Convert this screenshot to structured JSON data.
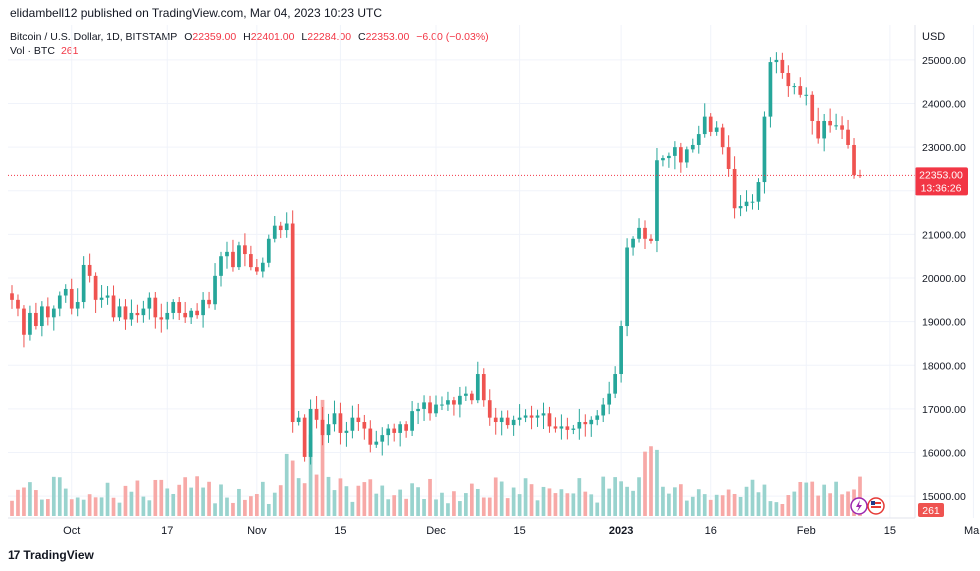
{
  "publisher": "elidambell12 published on TradingView.com, Mar 04, 2023 10:23 UTC",
  "legend": {
    "symbol": "Bitcoin / U.S. Dollar, 1D, BITSTAMP",
    "o_label": "O",
    "o_value": "22359.00",
    "h_label": "H",
    "h_value": "22401.00",
    "l_label": "L",
    "l_value": "22284.00",
    "c_label": "C",
    "c_value": "22353.00",
    "change": "−6.00 (−0.03%)",
    "vol_label": "Vol · BTC",
    "vol_value": "261"
  },
  "currency": "USD",
  "last_price": {
    "value": "22353.00",
    "countdown": "13:36:26"
  },
  "volume_badge": "261",
  "brand": "TradingView",
  "colors": {
    "up": "#26a69a",
    "down": "#ef5350",
    "up_vol": "#99d3ce",
    "down_vol": "#f7a9a7",
    "grid": "#f0f3fa",
    "price_label": "#f23645"
  },
  "chart_data": {
    "type": "candlestick",
    "title": "Bitcoin / U.S. Dollar, 1D, BITSTAMP",
    "ylim": [
      14500,
      25800
    ],
    "y_ticks": [
      15000,
      16000,
      17000,
      18000,
      19000,
      20000,
      21000,
      22000,
      23000,
      24000,
      25000
    ],
    "y_tick_labels": [
      "15000.00",
      "16000.00",
      "17000.00",
      "18000.00",
      "19000.00",
      "20000.00",
      "21000.00",
      "22000.00",
      "23000.00",
      "24000.00",
      "25000.00"
    ],
    "x_ticks": [
      {
        "label": "Oct",
        "index": 10,
        "bold": false
      },
      {
        "label": "17",
        "index": 26,
        "bold": false
      },
      {
        "label": "Nov",
        "index": 41,
        "bold": false
      },
      {
        "label": "15",
        "index": 55,
        "bold": false
      },
      {
        "label": "Dec",
        "index": 71,
        "bold": false
      },
      {
        "label": "15",
        "index": 85,
        "bold": false
      },
      {
        "label": "2023",
        "index": 102,
        "bold": true
      },
      {
        "label": "16",
        "index": 117,
        "bold": false
      },
      {
        "label": "Feb",
        "index": 133,
        "bold": false
      },
      {
        "label": "15",
        "index": 147,
        "bold": false
      },
      {
        "label": "Mar",
        "index": 161,
        "bold": false
      }
    ],
    "ohlc_closes": [
      19500,
      19300,
      18700,
      19200,
      18900,
      19350,
      19100,
      19300,
      19600,
      19750,
      19300,
      19450,
      20300,
      20050,
      19500,
      19550,
      19600,
      19100,
      19350,
      19050,
      19200,
      19150,
      19300,
      19550,
      19100,
      19050,
      19200,
      19450,
      19200,
      19100,
      19250,
      19150,
      19500,
      19400,
      20050,
      20500,
      20600,
      20250,
      20750,
      20550,
      20250,
      20150,
      20350,
      20900,
      21200,
      21100,
      21250,
      16700,
      16800,
      15900,
      17000,
      16750,
      16400,
      16650,
      16900,
      16450,
      16500,
      16800,
      16700,
      16550,
      16180,
      16250,
      16400,
      16550,
      16450,
      16650,
      16500,
      16950,
      17000,
      17150,
      16900,
      17100,
      17100,
      17200,
      17100,
      17300,
      17350,
      17200,
      17800,
      17200,
      16800,
      16700,
      16800,
      16630,
      16750,
      16800,
      16850,
      16800,
      16850,
      16900,
      16600,
      16550,
      16600,
      16520,
      16550,
      16700,
      16650,
      16750,
      16850,
      17100,
      17350,
      17800,
      18900,
      20700,
      20900,
      21150,
      20900,
      20850,
      22700,
      22750,
      22800,
      23000,
      22650,
      22950,
      23050,
      23300,
      23700,
      23350,
      23450,
      23000,
      22500,
      21600,
      21650,
      21750,
      21750,
      22200,
      23700,
      24950,
      25000,
      24700,
      24400,
      24400,
      24200,
      24200,
      23600,
      23200,
      23600,
      23500,
      23500,
      23400,
      23050,
      22359,
      22353
    ],
    "last_close": 22353,
    "volume_note": "Volume bars share the candle colors"
  }
}
